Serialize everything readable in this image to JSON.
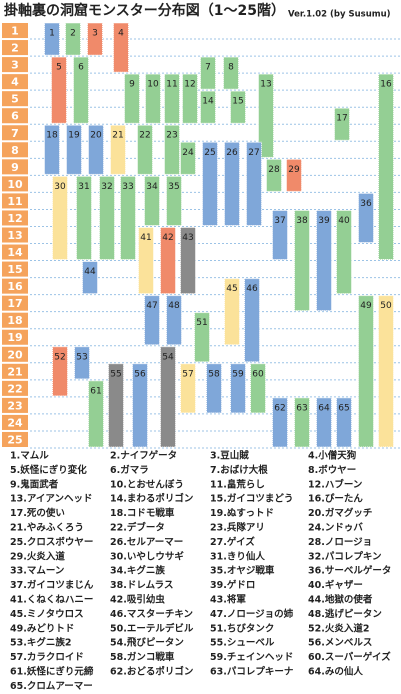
{
  "title": "掛軸裏の洞窟モンスター分布図（1～25階）",
  "version": "Ver.1.02 (by Susumu)",
  "floors": [
    "1",
    "2",
    "3",
    "4",
    "5",
    "6",
    "7",
    "8",
    "9",
    "10",
    "11",
    "12",
    "13",
    "14",
    "15",
    "16",
    "17",
    "18",
    "19",
    "20",
    "21",
    "22",
    "23",
    "24",
    "25"
  ],
  "bars": [
    {
      "label": "1",
      "color": "#7fa7d9",
      "floors": [
        1,
        2
      ]
    },
    {
      "label": "2",
      "color": "#94cf94",
      "floors": [
        1,
        2
      ]
    },
    {
      "label": "3",
      "color": "#f08a6a",
      "floors": [
        1,
        2
      ]
    },
    {
      "label": "4",
      "color": "#f08a6a",
      "floors": [
        1,
        3
      ]
    },
    {
      "label": "5",
      "color": "#f08a6a",
      "floors": [
        3,
        6
      ]
    },
    {
      "label": "6",
      "color": "#94cf94",
      "floors": [
        3,
        6
      ]
    },
    {
      "label": "7",
      "color": "#94cf94",
      "floors": [
        3,
        4
      ]
    },
    {
      "label": "8",
      "color": "#94cf94",
      "floors": [
        3,
        4
      ]
    },
    {
      "label": "9",
      "color": "#94cf94",
      "floors": [
        4,
        6
      ]
    },
    {
      "label": "10",
      "color": "#94cf94",
      "floors": [
        4,
        6
      ]
    },
    {
      "label": "11",
      "color": "#94cf94",
      "floors": [
        4,
        6
      ]
    },
    {
      "label": "12",
      "color": "#94cf94",
      "floors": [
        4,
        6
      ]
    },
    {
      "label": "13",
      "color": "#94cf94",
      "floors": [
        4,
        8
      ]
    },
    {
      "label": "14",
      "color": "#94cf94",
      "floors": [
        5,
        6
      ]
    },
    {
      "label": "15",
      "color": "#94cf94",
      "floors": [
        5,
        6
      ]
    },
    {
      "label": "16",
      "color": "#94cf94",
      "floors": [
        4,
        14
      ]
    },
    {
      "label": "17",
      "color": "#94cf94",
      "floors": [
        6,
        7
      ]
    },
    {
      "label": "18",
      "color": "#7fa7d9",
      "floors": [
        7,
        9
      ]
    },
    {
      "label": "19",
      "color": "#7fa7d9",
      "floors": [
        7,
        9
      ]
    },
    {
      "label": "20",
      "color": "#7fa7d9",
      "floors": [
        7,
        9
      ]
    },
    {
      "label": "21",
      "color": "#fbe29a",
      "floors": [
        7,
        9
      ]
    },
    {
      "label": "22",
      "color": "#94cf94",
      "floors": [
        7,
        9
      ]
    },
    {
      "label": "23",
      "color": "#94cf94",
      "floors": [
        7,
        9
      ]
    },
    {
      "label": "24",
      "color": "#94cf94",
      "floors": [
        8,
        9
      ]
    },
    {
      "label": "25",
      "color": "#7fa7d9",
      "floors": [
        8,
        12
      ]
    },
    {
      "label": "26",
      "color": "#7fa7d9",
      "floors": [
        8,
        12
      ]
    },
    {
      "label": "27",
      "color": "#7fa7d9",
      "floors": [
        8,
        12
      ]
    },
    {
      "label": "28",
      "color": "#94cf94",
      "floors": [
        9,
        10
      ]
    },
    {
      "label": "29",
      "color": "#f08a6a",
      "floors": [
        9,
        10
      ]
    },
    {
      "label": "30",
      "color": "#fbe29a",
      "floors": [
        10,
        14
      ]
    },
    {
      "label": "31",
      "color": "#94cf94",
      "floors": [
        10,
        14
      ]
    },
    {
      "label": "32",
      "color": "#94cf94",
      "floors": [
        10,
        14
      ]
    },
    {
      "label": "33",
      "color": "#94cf94",
      "floors": [
        10,
        14
      ]
    },
    {
      "label": "34",
      "color": "#94cf94",
      "floors": [
        10,
        12
      ]
    },
    {
      "label": "35",
      "color": "#94cf94",
      "floors": [
        10,
        12
      ]
    },
    {
      "label": "36",
      "color": "#7fa7d9",
      "floors": [
        11,
        13
      ]
    },
    {
      "label": "37",
      "color": "#7fa7d9",
      "floors": [
        12,
        14
      ]
    },
    {
      "label": "38",
      "color": "#94cf94",
      "floors": [
        12,
        17
      ]
    },
    {
      "label": "39",
      "color": "#7fa7d9",
      "floors": [
        12,
        17
      ]
    },
    {
      "label": "40",
      "color": "#94cf94",
      "floors": [
        12,
        16
      ]
    },
    {
      "label": "41",
      "color": "#fbe29a",
      "floors": [
        13,
        16
      ]
    },
    {
      "label": "42",
      "color": "#f08a6a",
      "floors": [
        13,
        16
      ]
    },
    {
      "label": "43",
      "color": "#8a8a8a",
      "floors": [
        13,
        16
      ]
    },
    {
      "label": "44",
      "color": "#7fa7d9",
      "floors": [
        15,
        16
      ]
    },
    {
      "label": "45",
      "color": "#fbe29a",
      "floors": [
        16,
        19
      ]
    },
    {
      "label": "46",
      "color": "#7fa7d9",
      "floors": [
        16,
        20
      ]
    },
    {
      "label": "47",
      "color": "#7fa7d9",
      "floors": [
        17,
        19
      ]
    },
    {
      "label": "48",
      "color": "#7fa7d9",
      "floors": [
        17,
        19
      ]
    },
    {
      "label": "49",
      "color": "#94cf94",
      "floors": [
        17,
        25
      ]
    },
    {
      "label": "50",
      "color": "#fbe29a",
      "floors": [
        17,
        25
      ]
    },
    {
      "label": "51",
      "color": "#94cf94",
      "floors": [
        18,
        20
      ]
    },
    {
      "label": "52",
      "color": "#f08a6a",
      "floors": [
        20,
        22
      ]
    },
    {
      "label": "53",
      "color": "#7fa7d9",
      "floors": [
        20,
        21
      ]
    },
    {
      "label": "54",
      "color": "#8a8a8a",
      "floors": [
        20,
        25
      ]
    },
    {
      "label": "55",
      "color": "#8a8a8a",
      "floors": [
        21,
        25
      ]
    },
    {
      "label": "56",
      "color": "#7fa7d9",
      "floors": [
        21,
        25
      ]
    },
    {
      "label": "57",
      "color": "#fbe29a",
      "floors": [
        21,
        23
      ]
    },
    {
      "label": "58",
      "color": "#7fa7d9",
      "floors": [
        21,
        23
      ]
    },
    {
      "label": "59",
      "color": "#7fa7d9",
      "floors": [
        21,
        23
      ]
    },
    {
      "label": "60",
      "color": "#94cf94",
      "floors": [
        21,
        23
      ]
    },
    {
      "label": "61",
      "color": "#94cf94",
      "floors": [
        22,
        25
      ]
    },
    {
      "label": "62",
      "color": "#7fa7d9",
      "floors": [
        23,
        25
      ]
    },
    {
      "label": "63",
      "color": "#94cf94",
      "floors": [
        23,
        25
      ]
    },
    {
      "label": "64",
      "color": "#7fa7d9",
      "floors": [
        23,
        25
      ]
    },
    {
      "label": "65",
      "color": "#7fa7d9",
      "floors": [
        23,
        25
      ]
    }
  ],
  "legend": [
    "1.マムル",
    "2.ナイフゲータ",
    "3.豆山賊",
    "4.小僧天狗",
    "5.妖怪にぎり変化",
    "6.ガマラ",
    "7.おばけ大根",
    "8.ボウヤー",
    "9.鬼面武者",
    "10.とおせんぼう",
    "11.畠荒らし",
    "12.ハブーン",
    "13.アイアンヘッド",
    "14.まわるポリゴン",
    "15.ガイコツまどう",
    "16.ぴーたん",
    "17.死の使い",
    "18.コドモ戦車",
    "19.ぬすっトド",
    "20.ガマグッチ",
    "21.やみふくろう",
    "22.デブータ",
    "23.兵隊アリ",
    "24.ンドゥバ",
    "25.クロスボウヤー",
    "26.セルアーマー",
    "27.ゲイズ",
    "28.ノロージョ",
    "29.火炎入道",
    "30.いやしウサギ",
    "31.きり仙人",
    "32.パコレプキン",
    "33.マムーン",
    "34.キグニ族",
    "35.オヤジ戦車",
    "36.サーベルゲータ",
    "37.ガイコツまじん",
    "38.ドレムラス",
    "39.ゲドロ",
    "40.ギャザー",
    "41.くねくねハニー",
    "42.吸引幼虫",
    "43.将軍",
    "44.地獄の使者",
    "45.ミノタウロス",
    "46.マスターチキン",
    "47.ノロージョの姉",
    "48.逃げピータン",
    "49.みどりトド",
    "50.エーテルデビル",
    "51.ちびタンク",
    "52.火炎入道2",
    "53.キグニ族2",
    "54.飛びピータン",
    "55.シューベル",
    "56.メンベルス",
    "57.カラクロイド",
    "58.ガンコ戦車",
    "59.チェインヘッド",
    "60.スーパーゲイズ",
    "61.妖怪にぎり元締",
    "62.おどるポリゴン",
    "63.パコレプキーナ",
    "64.みの仙人",
    "65.クロムアーマー"
  ]
}
